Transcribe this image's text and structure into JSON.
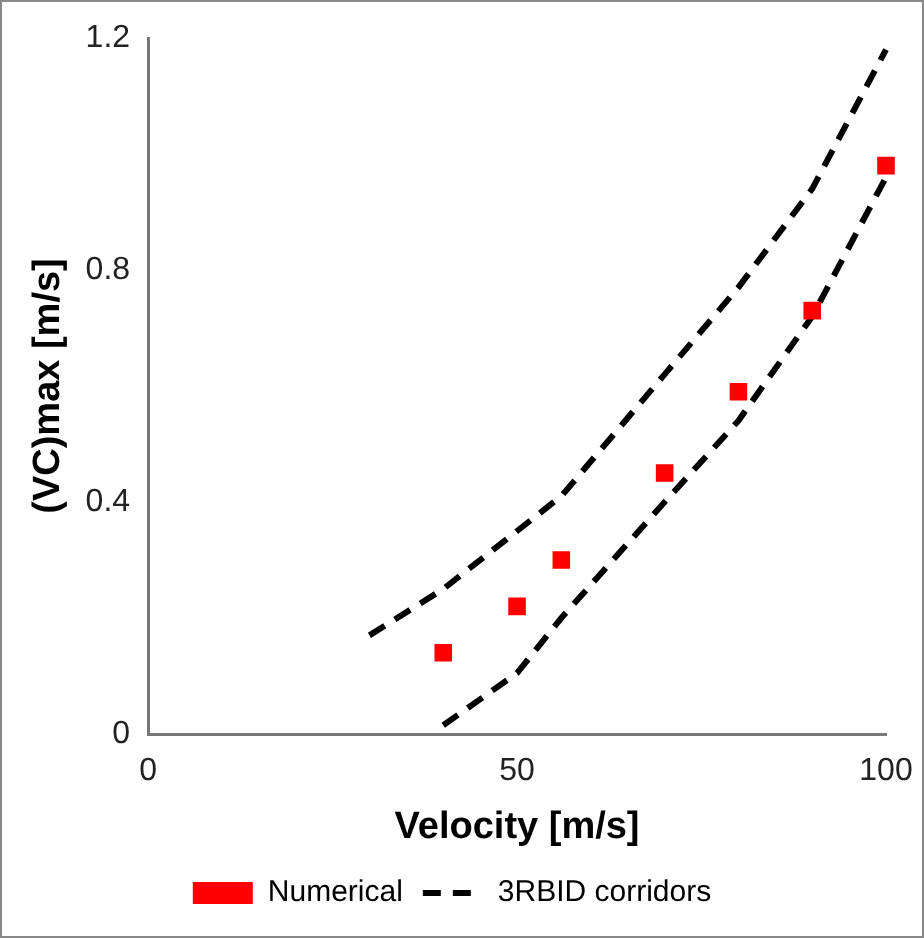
{
  "chart_data": {
    "type": "scatter",
    "xlabel": "Velocity [m/s]",
    "ylabel": "(VC)max [m/s]",
    "xlim": [
      0,
      100
    ],
    "xticks": [
      0,
      50,
      100
    ],
    "ylim": [
      0,
      1.2
    ],
    "yticks": [
      0,
      0.4,
      0.8,
      1.2
    ],
    "grid": false,
    "legend": "bottom",
    "series": [
      {
        "name": "Numerical",
        "marker": "square",
        "color": "#ff0000",
        "x": [
          40,
          50,
          56,
          70,
          80,
          90,
          100
        ],
        "values": [
          0.14,
          0.22,
          0.3,
          0.45,
          0.59,
          0.73,
          0.98
        ]
      },
      {
        "name": "3RBID corridors",
        "type": "line",
        "marker": "none",
        "line_style": "dashed",
        "color": "#000000",
        "x": [
          30,
          40,
          50,
          56,
          70,
          80,
          90,
          100
        ],
        "values": [
          0.17,
          0.25,
          0.35,
          0.41,
          0.62,
          0.77,
          0.94,
          1.18
        ]
      },
      {
        "type": "line",
        "marker": "none",
        "line_style": "dashed",
        "color": "#000000",
        "x": [
          40,
          50,
          56,
          70,
          80,
          90,
          100
        ],
        "values": [
          0.015,
          0.105,
          0.2,
          0.4,
          0.54,
          0.72,
          0.96
        ]
      }
    ]
  }
}
